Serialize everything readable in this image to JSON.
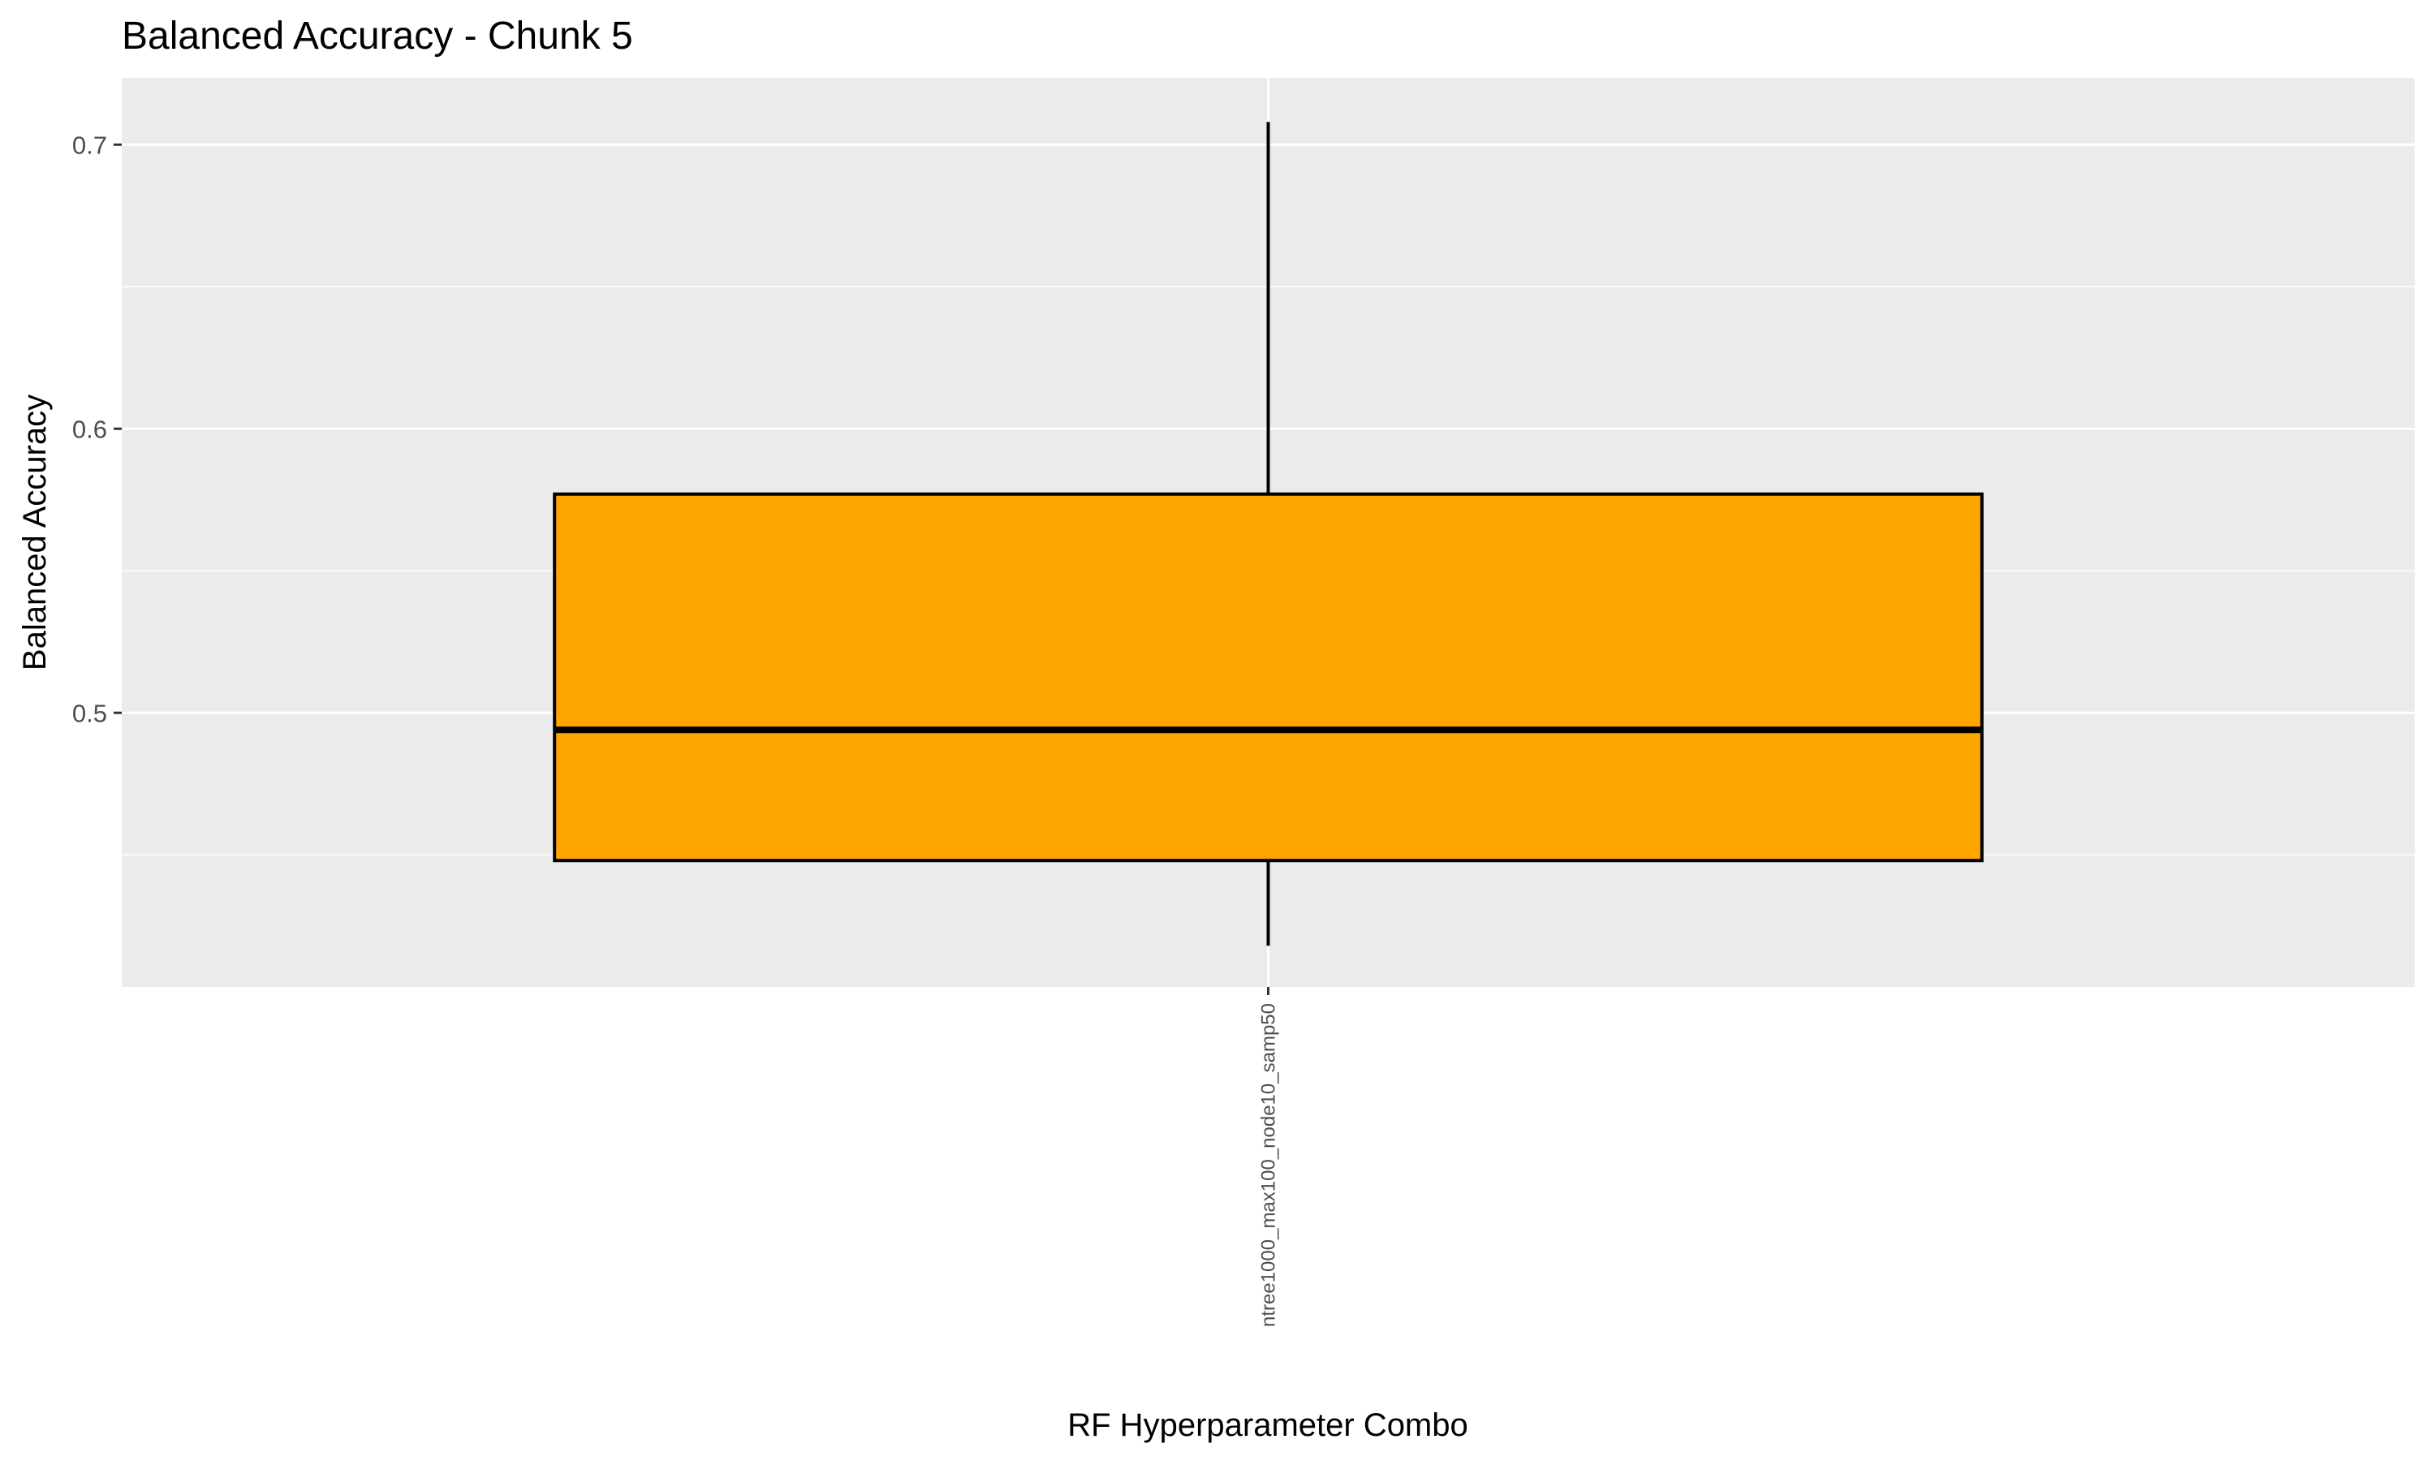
{
  "chart_data": {
    "type": "boxplot",
    "title": "Balanced Accuracy - Chunk 5",
    "xlabel": "RF Hyperparameter Combo",
    "ylabel": "Balanced Accuracy",
    "categories": [
      "ntree1000_max100_node10_samp50"
    ],
    "boxes": [
      {
        "category": "ntree1000_max100_node10_samp50",
        "whisker_low": 0.418,
        "q1": 0.448,
        "median": 0.494,
        "q3": 0.577,
        "whisker_high": 0.708
      }
    ],
    "ylim": [
      0.4035,
      0.7235
    ],
    "y_ticks": [
      0.5,
      0.6,
      0.7
    ],
    "y_tick_labels": [
      "0.5",
      "0.6",
      "0.7"
    ],
    "y_minor_ticks": [
      0.45,
      0.55,
      0.65
    ],
    "grid": true,
    "legend": "none",
    "colors": {
      "box_fill": "#FFA500",
      "box_stroke": "#000000",
      "panel_background": "#EBEBEB",
      "grid": "#FFFFFF",
      "axis_text": "#4D4D4D",
      "label_text": "#000000"
    }
  }
}
